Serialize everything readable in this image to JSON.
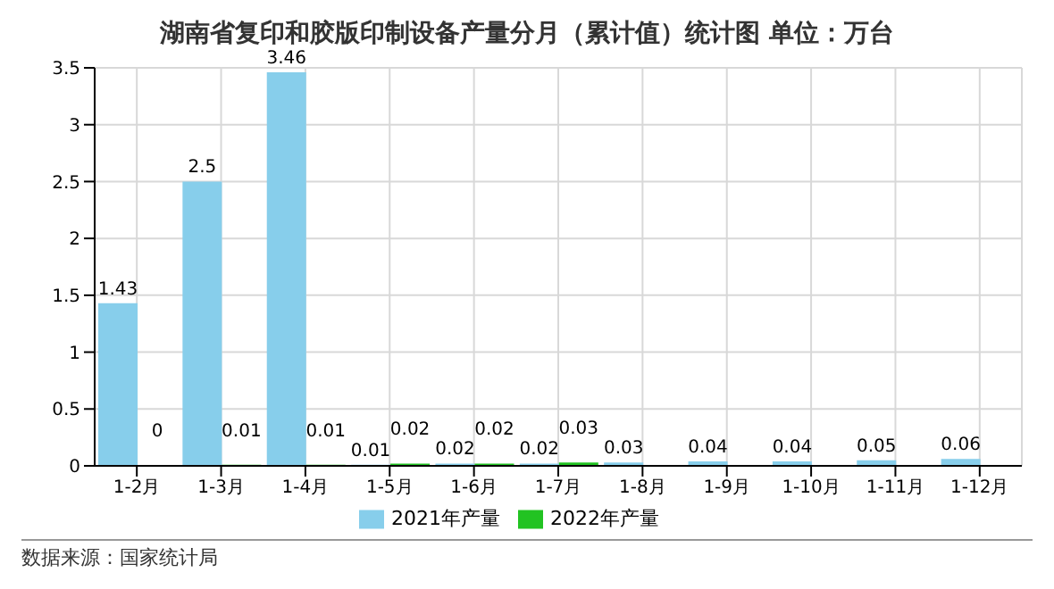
{
  "chart_data": {
    "type": "bar",
    "title": "湖南省复印和胶版印制设备产量分月（累计值）统计图 单位：万台",
    "categories": [
      "1-2月",
      "1-3月",
      "1-4月",
      "1-5月",
      "1-6月",
      "1-7月",
      "1-8月",
      "1-9月",
      "1-10月",
      "1-11月",
      "1-12月"
    ],
    "series": [
      {
        "name": "2021年产量",
        "color": "#87ceeb",
        "values": [
          1.43,
          2.5,
          3.46,
          0.01,
          0.02,
          0.02,
          0.03,
          0.04,
          0.04,
          0.05,
          0.06
        ]
      },
      {
        "name": "2022年产量",
        "color": "#22c322",
        "values": [
          0,
          0.01,
          0.01,
          0.02,
          0.02,
          0.03,
          null,
          null,
          null,
          null,
          null
        ]
      }
    ],
    "ylim": [
      0,
      3.5
    ],
    "yticks": [
      0,
      0.5,
      1,
      1.5,
      2,
      2.5,
      3,
      3.5
    ],
    "grid": true,
    "legend": "bottom",
    "data_labels": true,
    "annotations": [
      "数据来源：国家统计局"
    ]
  }
}
